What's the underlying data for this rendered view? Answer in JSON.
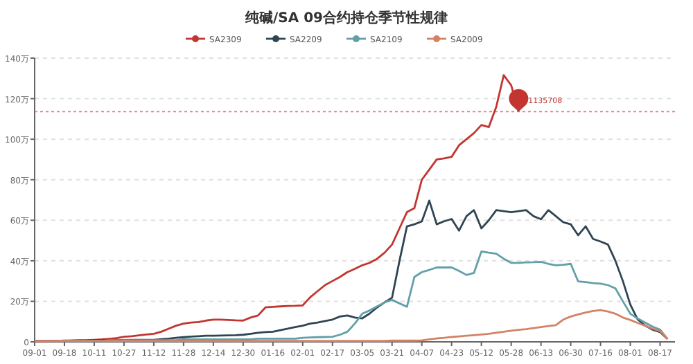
{
  "chart_data": {
    "type": "line",
    "title": "纯碱/SA  09合约持仓季节性规律",
    "legend": "top",
    "grid": "y",
    "line_style": "solid",
    "categories": [
      "09-01",
      null,
      null,
      null,
      "09-18",
      null,
      null,
      null,
      "10-11",
      null,
      null,
      null,
      "10-27",
      null,
      null,
      null,
      "11-12",
      null,
      null,
      null,
      "11-28",
      null,
      null,
      null,
      "12-14",
      null,
      null,
      null,
      "12-30",
      null,
      null,
      null,
      "01-16",
      null,
      null,
      null,
      "02-01",
      null,
      null,
      null,
      "02-17",
      null,
      null,
      null,
      "03-05",
      null,
      null,
      null,
      "03-21",
      null,
      null,
      null,
      "04-07",
      null,
      null,
      null,
      "04-23",
      null,
      null,
      null,
      "05-12",
      null,
      null,
      null,
      "05-28",
      null,
      null,
      null,
      "06-13",
      null,
      null,
      null,
      "06-30",
      null,
      null,
      null,
      "07-16",
      null,
      null,
      null,
      "08-01",
      null,
      null,
      null,
      "08-17",
      null,
      null
    ],
    "ylim": [
      0,
      140
    ],
    "yticks": [
      0,
      {
        "value": 20,
        "label": "20万"
      },
      {
        "value": 40,
        "label": "40万"
      },
      {
        "value": 60,
        "label": "60万"
      },
      {
        "value": 80,
        "label": "80万"
      },
      {
        "value": 100,
        "label": "100万"
      },
      {
        "value": 120,
        "label": "120万"
      },
      {
        "value": 140,
        "label": "140万"
      }
    ],
    "ref_lines": [
      {
        "axis": "y",
        "value": 113.6,
        "color": "#f08080",
        "line_style": "dotted"
      }
    ],
    "annotations": [
      {
        "text": "1135708",
        "y": 113.6
      }
    ],
    "series": [
      {
        "name": "SA2309",
        "color": "#c23531",
        "values": [
          0.3,
          0.3,
          0.4,
          0.4,
          0.5,
          0.6,
          0.7,
          0.8,
          1,
          1.2,
          1.5,
          1.8,
          2.5,
          2.8,
          3.2,
          3.6,
          4,
          5,
          6.5,
          8,
          9,
          9.5,
          9.8,
          10.5,
          11,
          11,
          10.8,
          10.6,
          10.5,
          12,
          13,
          17,
          17.3,
          17.5,
          17.7,
          17.8,
          18,
          22,
          25,
          28,
          30,
          32,
          34.4,
          36,
          37.8,
          39,
          41,
          44,
          48,
          56,
          64,
          66,
          80,
          85,
          90,
          90.5,
          91.3,
          97,
          100,
          103,
          107,
          106,
          116,
          131.6,
          126.6,
          113.6,
          null,
          null,
          null,
          null,
          null,
          null,
          null,
          null,
          null,
          null,
          null,
          null,
          null,
          null,
          null,
          null,
          null,
          null,
          null,
          null,
          null
        ]
      },
      {
        "name": "SA2209",
        "color": "#2f4554",
        "values": [
          0.5,
          0.5,
          0.5,
          0.5,
          0.6,
          0.6,
          0.7,
          0.7,
          0.8,
          0.8,
          0.9,
          0.9,
          0.9,
          1,
          1,
          1,
          1,
          1.3,
          1.6,
          2,
          2.3,
          2.6,
          2.8,
          3,
          3,
          3.1,
          3.2,
          3.3,
          3.5,
          4,
          4.5,
          4.8,
          5,
          5.8,
          6.5,
          7.3,
          8,
          9,
          9.5,
          10.3,
          11,
          12.5,
          13,
          12,
          11.6,
          14,
          17,
          19.5,
          21.8,
          40,
          57,
          58,
          59.4,
          69.7,
          58,
          59.5,
          60.6,
          54.9,
          62,
          65,
          56,
          60,
          65,
          64.5,
          64,
          64.5,
          65,
          62,
          60.5,
          65,
          62,
          59,
          58,
          52.6,
          57,
          50.8,
          49.5,
          48,
          40,
          30,
          18.4,
          11,
          8,
          6,
          4.8,
          1.4,
          null
        ]
      },
      {
        "name": "SA2109",
        "color": "#61a0a8",
        "values": [
          null,
          null,
          null,
          0.5,
          0.5,
          0.5,
          0.5,
          0.5,
          0.5,
          0.5,
          0.8,
          0.8,
          0.8,
          0.8,
          0.8,
          0.8,
          0.8,
          0.8,
          0.8,
          0.8,
          1.2,
          1.2,
          1.2,
          1.2,
          1.2,
          1.2,
          1.2,
          1.2,
          1.2,
          1.2,
          1.6,
          1.6,
          1.6,
          1.6,
          1.6,
          1.6,
          2,
          2.2,
          2.3,
          2.4,
          2.5,
          3.5,
          5,
          9,
          13.9,
          15.5,
          17.5,
          19.5,
          20.7,
          19,
          17.3,
          32,
          34.4,
          35.5,
          36.7,
          36.7,
          36.7,
          35,
          33,
          34,
          44.6,
          44,
          43.5,
          41,
          39,
          39,
          39.2,
          39.3,
          39.5,
          38.5,
          37.8,
          38,
          38.5,
          29.8,
          29.5,
          29,
          28.7,
          28,
          26.4,
          20,
          13.9,
          11.5,
          9.5,
          7.5,
          6,
          1.4,
          null
        ]
      },
      {
        "name": "SA2009",
        "color": "#d48265",
        "values": [
          0.5,
          0.5,
          0.5,
          0.5,
          0.5,
          0.5,
          0.5,
          0.5,
          0.5,
          0.5,
          0.5,
          0.5,
          0.5,
          0.5,
          0.5,
          0.5,
          0.5,
          0.5,
          0.5,
          0.5,
          0.5,
          0.5,
          0.5,
          0.5,
          0.5,
          0.5,
          0.5,
          0.5,
          0.5,
          0.5,
          0.5,
          0.5,
          0.5,
          0.5,
          0.5,
          0.5,
          0.5,
          0.5,
          0.5,
          0.5,
          0.5,
          0.5,
          0.5,
          0.5,
          0.5,
          0.5,
          0.5,
          0.5,
          0.6,
          0.6,
          0.6,
          0.6,
          0.7,
          1.2,
          1.7,
          2,
          2.4,
          2.7,
          3,
          3.3,
          3.6,
          4,
          4.5,
          5,
          5.5,
          5.9,
          6.3,
          6.8,
          7.3,
          7.8,
          8.2,
          11,
          12.5,
          13.5,
          14.5,
          15.2,
          15.7,
          15,
          13.9,
          12,
          10.8,
          9.3,
          8,
          6.5,
          5.3,
          1.4,
          null
        ]
      }
    ]
  }
}
